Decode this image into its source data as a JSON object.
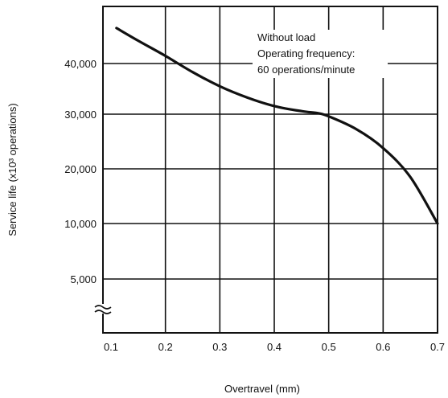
{
  "chart_data": {
    "type": "line",
    "xlabel": "Overtravel (mm)",
    "ylabel": "Service life (x10³ operations)",
    "x_ticks": [
      "0.1",
      "0.2",
      "0.3",
      "0.4",
      "0.5",
      "0.6",
      "0.7"
    ],
    "y_ticks": [
      "5,000",
      "10,000",
      "20,000",
      "30,000",
      "40,000"
    ],
    "y_tick_values": [
      5000,
      10000,
      20000,
      30000,
      40000
    ],
    "xlim": [
      0.1,
      0.7
    ],
    "y_axis_broken": true,
    "grid": true,
    "annotation": [
      "Without load",
      "Operating frequency:",
      "60 operations/minute"
    ],
    "series": [
      {
        "x": [
          0.11,
          0.15,
          0.2,
          0.25,
          0.3,
          0.35,
          0.4,
          0.45,
          0.48,
          0.5,
          0.55,
          0.6,
          0.65,
          0.7
        ],
        "y": [
          47000,
          44500,
          41500,
          38300,
          35500,
          33300,
          31600,
          30600,
          30200,
          29600,
          27300,
          23800,
          18500,
          10000
        ]
      }
    ]
  }
}
